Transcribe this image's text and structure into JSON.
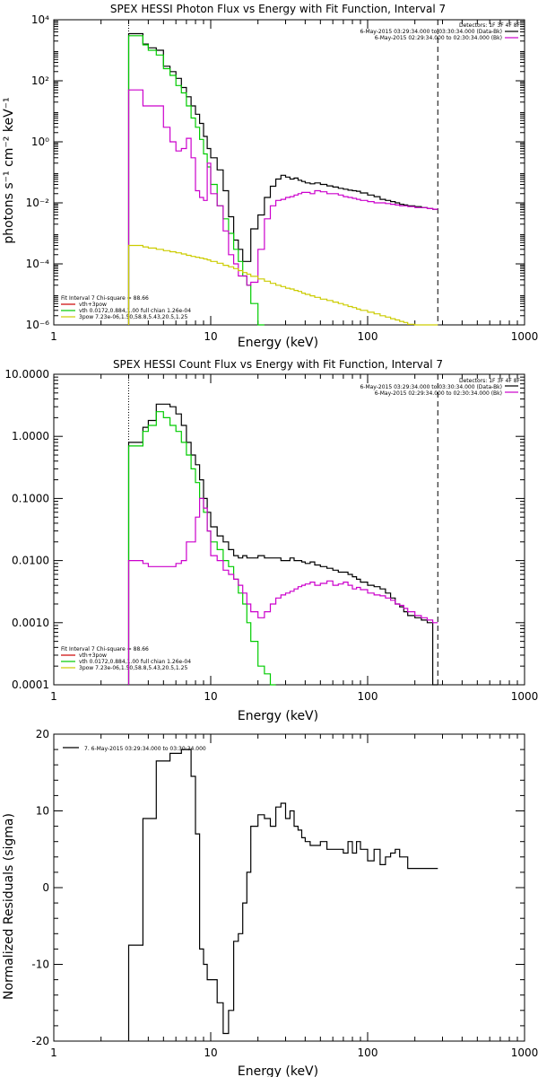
{
  "chart_data": [
    {
      "type": "line",
      "title": "SPEX HESSI Photon Flux vs Energy with Fit Function, Interval 7",
      "xlabel": "Energy (keV)",
      "ylabel": "photons s⁻¹ cm⁻² keV⁻¹",
      "xscale": "log",
      "yscale": "log",
      "xlim": [
        1,
        1000
      ],
      "ylim": [
        1e-06,
        10000
      ],
      "xticks": [
        1,
        10,
        100,
        1000
      ],
      "xtick_labels": [
        "1",
        "10",
        "100",
        "1000"
      ],
      "yticks": [
        1e-06,
        0.0001,
        0.01,
        1,
        100,
        10000
      ],
      "ytick_labels": [
        "10⁻⁶",
        "10⁻⁴",
        "10⁻²",
        "10⁰",
        "10²",
        "10⁴"
      ],
      "info_lines": [
        "Detectors: 1F 3F 4F 8F",
        "6-May-2015 03:29:34.000 to 03:30:34.000 (Data-Bk)",
        "6-May-2015 02:29:34.000 to 02:30:34.000 (Bk)"
      ],
      "info_colors": [
        "#000000",
        "#cc00cc"
      ],
      "fit_lines": [
        "Fit Interval 7   Chi-square = 88.66",
        "vth+3pow",
        "vth 0.0172,0.884,1.00  full chian 1.26e-04",
        "3pow 7.23e-06,1.50,58.8,5.43,20.5,1.25"
      ],
      "fit_colors": [
        "#000000",
        "#cc0000",
        "#00cc00",
        "#cccc00"
      ],
      "markers": {
        "dotted_x": 3,
        "dashed_x": 280
      },
      "series": [
        {
          "color": "#000000",
          "edges": [
            3,
            3.3,
            3.7,
            4,
            4.5,
            5,
            5.5,
            6,
            6.5,
            7,
            7.5,
            8,
            8.5,
            9,
            9.5,
            10,
            11,
            12,
            13,
            14,
            15,
            16,
            17,
            18,
            20,
            22,
            24,
            26,
            28,
            30,
            32,
            34,
            36,
            38,
            40,
            43,
            46,
            50,
            55,
            60,
            65,
            70,
            75,
            80,
            85,
            90,
            100,
            110,
            120,
            130,
            140,
            150,
            160,
            170,
            180,
            200,
            220,
            240,
            260,
            280
          ],
          "values": [
            3500.0,
            3500.0,
            1600.0,
            1200.0,
            1000.0,
            300.0,
            200.0,
            120.0,
            60.0,
            30.0,
            15.0,
            8,
            4,
            1.5,
            0.6,
            0.3,
            0.12,
            0.025,
            0.0035,
            0.0006,
            0.0003,
            0.00012,
            0.00012,
            0.0014,
            0.004,
            0.015,
            0.035,
            0.06,
            0.08,
            0.07,
            0.06,
            0.065,
            0.055,
            0.05,
            0.045,
            0.042,
            0.045,
            0.04,
            0.036,
            0.033,
            0.03,
            0.028,
            0.026,
            0.025,
            0.024,
            0.021,
            0.018,
            0.016,
            0.013,
            0.012,
            0.011,
            0.01,
            0.009,
            0.0085,
            0.008,
            0.0075,
            0.007,
            0.0065,
            0.0062
          ]
        },
        {
          "color": "#00cc00",
          "edges": [
            3,
            3.3,
            3.7,
            4,
            4.5,
            5,
            5.5,
            6,
            6.5,
            7,
            7.5,
            8,
            8.5,
            9,
            9.5,
            10,
            11,
            12,
            13,
            14,
            15,
            16,
            17,
            18,
            20,
            22
          ],
          "values": [
            3000.0,
            3000.0,
            1500.0,
            1000.0,
            700.0,
            250.0,
            150.0,
            70.0,
            40.0,
            15.0,
            6,
            3,
            1.2,
            0.4,
            0.15,
            0.04,
            0.008,
            0.003,
            0.001,
            0.0003,
            0.00012,
            4e-05,
            2e-05,
            5e-06,
            5e-07
          ]
        },
        {
          "color": "#cc00cc",
          "edges": [
            3,
            3.3,
            3.7,
            4,
            4.5,
            5,
            5.5,
            6,
            6.5,
            7,
            7.5,
            8,
            8.5,
            9,
            9.5,
            10,
            11,
            12,
            13,
            14,
            15,
            16,
            17,
            18,
            20,
            22,
            24,
            26,
            28,
            30,
            32,
            34,
            36,
            38,
            40,
            43,
            46,
            50,
            55,
            60,
            65,
            70,
            75,
            80,
            85,
            90,
            100,
            110,
            120,
            130,
            140,
            150,
            160,
            170,
            180,
            200,
            220,
            240,
            260,
            280
          ],
          "values": [
            50.0,
            50.0,
            15.0,
            15.0,
            15.0,
            3,
            1,
            0.5,
            0.6,
            1.3,
            0.3,
            0.025,
            0.015,
            0.012,
            0.2,
            0.02,
            0.008,
            0.0012,
            0.0002,
            0.0001,
            4e-05,
            4e-05,
            2e-05,
            2.5e-05,
            0.0003,
            0.003,
            0.008,
            0.012,
            0.013,
            0.015,
            0.016,
            0.018,
            0.02,
            0.022,
            0.022,
            0.02,
            0.025,
            0.023,
            0.02,
            0.02,
            0.018,
            0.016,
            0.015,
            0.014,
            0.013,
            0.012,
            0.011,
            0.01,
            0.01,
            0.0095,
            0.009,
            0.0085,
            0.008,
            0.008,
            0.0075,
            0.007,
            0.007,
            0.0065,
            0.0062
          ]
        },
        {
          "color": "#cccc00",
          "edges": [
            3,
            3.3,
            3.7,
            4,
            4.5,
            5,
            5.5,
            6,
            6.5,
            7,
            7.5,
            8,
            8.5,
            9,
            9.5,
            10,
            11,
            12,
            13,
            14,
            15,
            16,
            17,
            18,
            20,
            22,
            24,
            26,
            28,
            30,
            32,
            34,
            36,
            38,
            40,
            43,
            46,
            50,
            55,
            60,
            65,
            70,
            75,
            80,
            85,
            90,
            100,
            110,
            120,
            130,
            140,
            150,
            160,
            170,
            180,
            200,
            220,
            240,
            260,
            280
          ],
          "values": [
            0.0004,
            0.0004,
            0.00036,
            0.00033,
            0.0003,
            0.00027,
            0.00025,
            0.00023,
            0.00021,
            0.00019,
            0.000175,
            0.000165,
            0.000155,
            0.000145,
            0.000135,
            0.00012,
            0.000105,
            9e-05,
            8e-05,
            7e-05,
            6e-05,
            5.2e-05,
            4.6e-05,
            3.9e-05,
            3.2e-05,
            2.7e-05,
            2.3e-05,
            2e-05,
            1.8e-05,
            1.6e-05,
            1.5e-05,
            1.35e-05,
            1.25e-05,
            1.1e-05,
            1e-05,
            9e-06,
            8e-06,
            7e-06,
            6.3e-06,
            5.6e-06,
            5e-06,
            4.5e-06,
            4e-06,
            3.7e-06,
            3.3e-06,
            3e-06,
            2.6e-06,
            2.3e-06,
            2e-06,
            1.8e-06,
            1.6e-06,
            1.45e-06,
            1.3e-06,
            1.2e-06,
            1.05e-06,
            9e-07,
            8e-07,
            7e-07,
            6e-07
          ]
        }
      ]
    },
    {
      "type": "line",
      "title": "SPEX HESSI Count Flux vs Energy with Fit Function, Interval 7",
      "xlabel": "Energy (keV)",
      "ylabel": "",
      "xscale": "log",
      "yscale": "log",
      "xlim": [
        1,
        1000
      ],
      "ylim": [
        0.0001,
        10
      ],
      "xticks": [
        1,
        10,
        100,
        1000
      ],
      "xtick_labels": [
        "1",
        "10",
        "100",
        "1000"
      ],
      "yticks": [
        0.0001,
        0.001,
        0.01,
        0.1,
        1,
        10
      ],
      "ytick_labels": [
        "0.0001",
        "0.0010",
        "0.0100",
        "0.1000",
        "1.0000",
        "10.0000"
      ],
      "info_lines": [
        "Detectors: 1F 3F 4F 8F",
        "6-May-2015 03:29:34.000 to 03:30:34.000 (Data-Bk)",
        "6-May-2015 02:29:34.000 to 02:30:34.000 (Bk)"
      ],
      "info_colors": [
        "#000000",
        "#cc00cc"
      ],
      "fit_lines": [
        "Fit Interval 7   Chi-square = 88.66",
        "vth+3pow",
        "vth 0.0172,0.884,1.00  full chian 1.26e-04",
        "3pow 7.23e-06,1.50,58.8,5.43,20.5,1.25"
      ],
      "fit_colors": [
        "#000000",
        "#cc0000",
        "#00cc00",
        "#cccc00"
      ],
      "markers": {
        "dotted_x": 3,
        "dashed_x": 280
      },
      "series": [
        {
          "color": "#000000",
          "edges": [
            3,
            3.3,
            3.7,
            4,
            4.5,
            5,
            5.5,
            6,
            6.5,
            7,
            7.5,
            8,
            8.5,
            9,
            9.5,
            10,
            11,
            12,
            13,
            14,
            15,
            16,
            17,
            18,
            20,
            22,
            24,
            26,
            28,
            30,
            32,
            34,
            36,
            38,
            40,
            43,
            46,
            50,
            55,
            60,
            65,
            70,
            75,
            80,
            85,
            90,
            100,
            110,
            120,
            130,
            140,
            150,
            160,
            170,
            180,
            200,
            220,
            240,
            260,
            280
          ],
          "values": [
            0.8,
            0.8,
            1.4,
            1.8,
            3.3,
            3.3,
            3.0,
            2.3,
            1.5,
            0.8,
            0.5,
            0.35,
            0.2,
            0.1,
            0.06,
            0.035,
            0.025,
            0.02,
            0.015,
            0.012,
            0.011,
            0.012,
            0.011,
            0.011,
            0.012,
            0.011,
            0.011,
            0.011,
            0.01,
            0.01,
            0.011,
            0.01,
            0.01,
            0.0095,
            0.009,
            0.0095,
            0.0085,
            0.008,
            0.0075,
            0.007,
            0.0065,
            0.0065,
            0.006,
            0.0055,
            0.005,
            0.0045,
            0.004,
            0.0038,
            0.0035,
            0.003,
            0.0025,
            0.002,
            0.0018,
            0.0015,
            0.0013,
            0.0012,
            0.0011,
            0.001,
            0.0001
          ]
        },
        {
          "color": "#00cc00",
          "edges": [
            3,
            3.3,
            3.7,
            4,
            4.5,
            5,
            5.5,
            6,
            6.5,
            7,
            7.5,
            8,
            8.5,
            9,
            9.5,
            10,
            11,
            12,
            13,
            14,
            15,
            16,
            17,
            18,
            20,
            22,
            24,
            26
          ],
          "values": [
            0.7,
            0.7,
            1.2,
            1.5,
            2.5,
            2.0,
            1.5,
            1.2,
            0.8,
            0.5,
            0.3,
            0.18,
            0.1,
            0.06,
            0.03,
            0.02,
            0.015,
            0.01,
            0.008,
            0.005,
            0.003,
            0.002,
            0.001,
            0.0005,
            0.0002,
            0.00015,
            8e-05
          ]
        },
        {
          "color": "#cc00cc",
          "edges": [
            3,
            3.3,
            3.7,
            4,
            4.5,
            5,
            5.5,
            6,
            6.5,
            7,
            7.5,
            8,
            8.5,
            9,
            9.5,
            10,
            11,
            12,
            13,
            14,
            15,
            16,
            17,
            18,
            20,
            22,
            24,
            26,
            28,
            30,
            32,
            34,
            36,
            38,
            40,
            43,
            46,
            50,
            55,
            60,
            65,
            70,
            75,
            80,
            85,
            90,
            100,
            110,
            120,
            130,
            140,
            150,
            160,
            170,
            180,
            200,
            220,
            240,
            260,
            280
          ],
          "values": [
            0.01,
            0.01,
            0.009,
            0.008,
            0.008,
            0.008,
            0.008,
            0.009,
            0.01,
            0.02,
            0.02,
            0.05,
            0.1,
            0.07,
            0.03,
            0.012,
            0.01,
            0.007,
            0.006,
            0.005,
            0.004,
            0.003,
            0.002,
            0.0015,
            0.0012,
            0.0015,
            0.002,
            0.0025,
            0.0028,
            0.003,
            0.0032,
            0.0035,
            0.0038,
            0.004,
            0.0042,
            0.0045,
            0.004,
            0.0043,
            0.0047,
            0.004,
            0.0042,
            0.0045,
            0.004,
            0.0035,
            0.0037,
            0.0034,
            0.003,
            0.0028,
            0.0027,
            0.0025,
            0.0023,
            0.002,
            0.0019,
            0.0017,
            0.0015,
            0.0013,
            0.0012,
            0.0011,
            0.001
          ]
        }
      ]
    },
    {
      "type": "line",
      "title": "",
      "xlabel": "Energy (keV)",
      "ylabel": "Normalized Residuals (sigma)",
      "xscale": "log",
      "yscale": "linear",
      "xlim": [
        1,
        1000
      ],
      "ylim": [
        -20,
        20
      ],
      "xticks": [
        1,
        10,
        100,
        1000
      ],
      "xtick_labels": [
        "1",
        "10",
        "100",
        "1000"
      ],
      "yticks": [
        -20,
        -10,
        0,
        10,
        20
      ],
      "ytick_labels": [
        "-20",
        "-10",
        "0",
        "10",
        "20"
      ],
      "legend_text": "7.  6-May-2015 03:29:34.000 to 03:30:34.000",
      "series": [
        {
          "color": "#000000",
          "edges": [
            3,
            3.3,
            3.7,
            4,
            4.5,
            5,
            5.5,
            6,
            6.5,
            7,
            7.5,
            8,
            8.5,
            9,
            9.5,
            10,
            11,
            12,
            13,
            14,
            15,
            16,
            17,
            18,
            20,
            22,
            24,
            26,
            28,
            30,
            32,
            34,
            36,
            38,
            40,
            43,
            46,
            50,
            55,
            60,
            65,
            70,
            75,
            80,
            85,
            90,
            100,
            110,
            120,
            130,
            140,
            150,
            160,
            170,
            180,
            200,
            220,
            240,
            260,
            280
          ],
          "values": [
            -7.5,
            -7.5,
            9,
            9,
            16.5,
            16.5,
            17.5,
            17.5,
            18,
            18,
            14.5,
            7,
            -8,
            -10,
            -12,
            -12,
            -15,
            -19,
            -16,
            -7,
            -6,
            -2,
            2,
            8,
            9.5,
            9,
            8,
            10.5,
            11,
            9,
            10,
            8,
            7.5,
            6.5,
            6,
            5.5,
            5.5,
            6,
            5,
            5,
            5,
            4.5,
            6,
            4.5,
            6,
            5,
            3.5,
            5,
            3,
            4,
            4.5,
            5,
            4,
            4,
            2.5,
            2.5,
            2.5,
            2.5,
            2.5
          ]
        }
      ]
    }
  ]
}
